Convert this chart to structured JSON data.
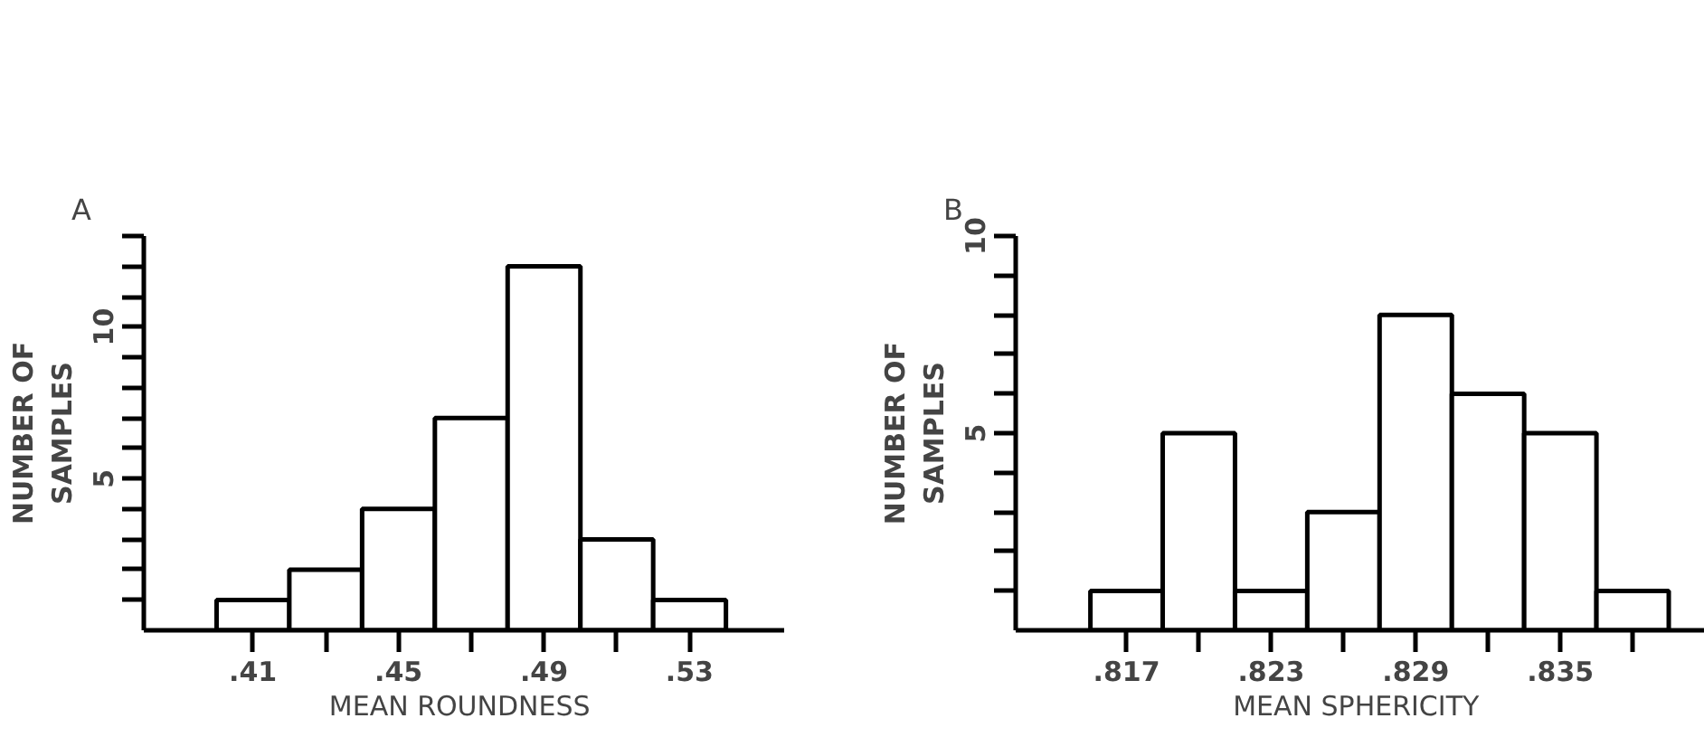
{
  "chart_data": [
    {
      "type": "histogram",
      "title": "A",
      "xlabel": "MEAN  ROUNDNESS",
      "ylabel": "NUMBER OF\nSAMPLES",
      "color": "#ffffff",
      "bins": [
        0.4,
        0.42,
        0.44,
        0.46,
        0.48,
        0.5,
        0.52,
        0.54
      ],
      "values": [
        1,
        2,
        4,
        7,
        12,
        3,
        1
      ],
      "xlim": [
        0.38,
        0.556
      ],
      "ylim": [
        0,
        13
      ],
      "xticks": [
        {
          "value": 0.41,
          "label": ".41"
        },
        {
          "value": 0.43,
          "label": null
        },
        {
          "value": 0.45,
          "label": ".45"
        },
        {
          "value": 0.47,
          "label": null
        },
        {
          "value": 0.49,
          "label": ".49"
        },
        {
          "value": 0.51,
          "label": null
        },
        {
          "value": 0.53,
          "label": ".53"
        }
      ],
      "yticks": [
        {
          "value": 1,
          "label": null
        },
        {
          "value": 2,
          "label": null
        },
        {
          "value": 3,
          "label": null
        },
        {
          "value": 4,
          "label": null
        },
        5,
        {
          "value": 6,
          "label": null
        },
        {
          "value": 7,
          "label": null
        },
        {
          "value": 8,
          "label": null
        },
        {
          "value": 9,
          "label": null
        },
        10,
        {
          "value": 11,
          "label": null
        },
        {
          "value": 12,
          "label": null
        },
        {
          "value": 13,
          "label": null
        }
      ]
    },
    {
      "type": "histogram",
      "title": "B",
      "xlabel": "MEAN  SPHERICITY",
      "ylabel": "NUMBER OF\nSAMPLES",
      "color": "#ffffff",
      "bins": [
        0.8155,
        0.8185,
        0.8215,
        0.8245,
        0.8275,
        0.8305,
        0.8335,
        0.8365,
        0.8395
      ],
      "values": [
        1,
        5,
        1,
        3,
        8,
        6,
        5,
        1
      ],
      "xlim": [
        0.8124,
        0.841
      ],
      "ylim": [
        0,
        10
      ],
      "xticks": [
        {
          "value": 0.817,
          "label": ".817"
        },
        {
          "value": 0.82,
          "label": null
        },
        {
          "value": 0.823,
          "label": ".823"
        },
        {
          "value": 0.826,
          "label": null
        },
        {
          "value": 0.829,
          "label": ".829"
        },
        {
          "value": 0.832,
          "label": null
        },
        {
          "value": 0.835,
          "label": ".835"
        },
        {
          "value": 0.838,
          "label": null
        }
      ],
      "yticks": [
        {
          "value": 1,
          "label": null
        },
        {
          "value": 2,
          "label": null
        },
        {
          "value": 3,
          "label": null
        },
        {
          "value": 4,
          "label": null
        },
        5,
        {
          "value": 6,
          "label": null
        },
        {
          "value": 7,
          "label": null
        },
        {
          "value": 8,
          "label": null
        },
        {
          "value": 9,
          "label": null
        },
        10
      ]
    }
  ]
}
